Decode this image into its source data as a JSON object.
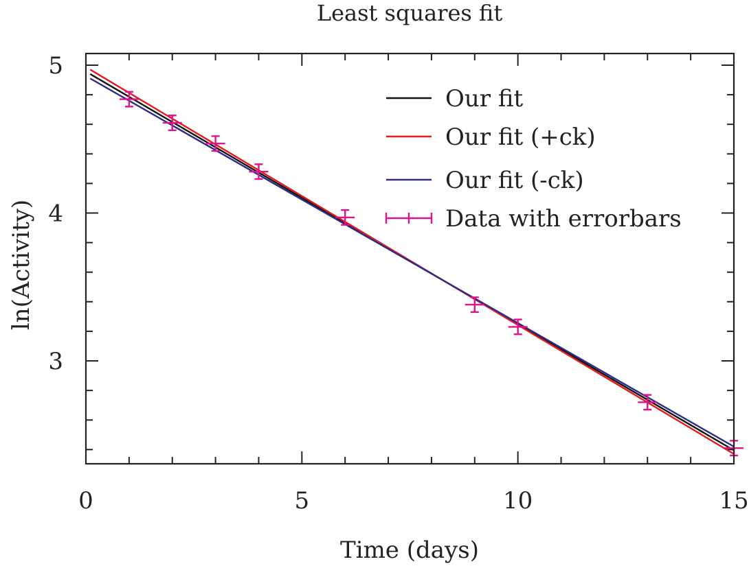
{
  "chart_data": {
    "type": "line",
    "title": "Least squares fit",
    "xlabel": "Time (days)",
    "ylabel": "ln(Activity)",
    "xlim": [
      0,
      15
    ],
    "ylim": [
      2.4,
      5.0
    ],
    "x_ticks": [
      0,
      5,
      10,
      15
    ],
    "y_ticks": [
      3,
      4,
      5
    ],
    "x_minor_step": 1,
    "y_minor_step": 0.2,
    "grid": false,
    "legend_position": "top-right",
    "series": [
      {
        "name": "Our fit",
        "kind": "line",
        "color": "#111111",
        "x": [
          0.1,
          15
        ],
        "y": [
          4.94,
          2.395
        ]
      },
      {
        "name": "Our fit (+ck)",
        "kind": "line",
        "color": "#e41a1c",
        "x": [
          0.1,
          15
        ],
        "y": [
          4.97,
          2.37
        ]
      },
      {
        "name": "Our fit (-ck)",
        "kind": "line",
        "color": "#2b2b8c",
        "x": [
          0.1,
          15
        ],
        "y": [
          4.91,
          2.42
        ]
      },
      {
        "name": "Data with errorbars",
        "kind": "errorbar",
        "color": "#e0128c",
        "x": [
          1,
          2,
          3,
          4,
          6,
          9,
          10,
          13,
          15
        ],
        "y": [
          4.77,
          4.61,
          4.47,
          4.28,
          3.97,
          3.38,
          3.23,
          2.72,
          2.41
        ],
        "yerr": [
          0.05,
          0.05,
          0.05,
          0.05,
          0.05,
          0.05,
          0.05,
          0.05,
          0.05
        ],
        "xerr": [
          0.03,
          0.03,
          0.03,
          0.03,
          0.03,
          0.03,
          0.03,
          0.03,
          0.03
        ]
      }
    ]
  }
}
